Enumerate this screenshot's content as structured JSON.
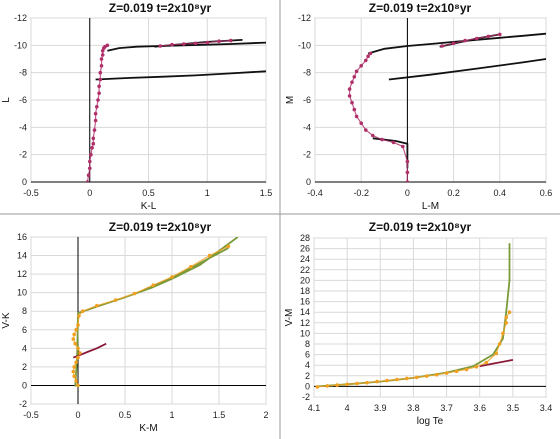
{
  "chart_data": [
    {
      "type": "line",
      "title": "Z=0.019   t=2x10⁸yr",
      "xlabel": "K-L",
      "ylabel": "L",
      "xlim": [
        -0.5,
        1.5
      ],
      "ylim": [
        0,
        -12
      ],
      "xticks": [
        "-0.5",
        "0",
        "0.5",
        "1",
        "1.5"
      ],
      "yticks": [
        "0",
        "-2",
        "-4",
        "-6",
        "-8",
        "-10",
        "-12"
      ],
      "grid": true,
      "series": [
        {
          "color": "#111111",
          "style": "line",
          "x": [
            0.15,
            0.25,
            0.4,
            0.6,
            0.8,
            1.0,
            1.2,
            1.5
          ],
          "y": [
            -9.6,
            -9.8,
            -9.9,
            -9.95,
            -10.0,
            -10.05,
            -10.1,
            -10.2
          ]
        },
        {
          "color": "#111111",
          "style": "line",
          "x": [
            0.05,
            0.3,
            0.6,
            0.9,
            1.2,
            1.5
          ],
          "y": [
            -7.5,
            -7.6,
            -7.7,
            -7.8,
            -7.95,
            -8.1
          ]
        },
        {
          "color": "#111111",
          "style": "line",
          "x": [
            0.55,
            0.8,
            1.0,
            1.3
          ],
          "y": [
            -9.9,
            -10.1,
            -10.25,
            -10.4
          ]
        },
        {
          "color": "#b0306a",
          "style": "markers",
          "x": [
            -0.02,
            -0.01,
            0.0,
            0.0,
            0.01,
            0.02,
            0.03,
            0.03,
            0.04,
            0.05,
            0.05,
            0.06,
            0.07,
            0.08,
            0.08,
            0.09,
            0.09,
            0.1,
            0.1,
            0.11,
            0.11,
            0.12,
            0.13,
            0.15
          ],
          "y": [
            0,
            -0.5,
            -1,
            -1.5,
            -2,
            -2.5,
            -2.8,
            -3.2,
            -3.8,
            -4.5,
            -5,
            -5.5,
            -6,
            -6.5,
            -7,
            -7.5,
            -8,
            -8.5,
            -9,
            -9.3,
            -9.6,
            -9.8,
            -9.9,
            -10.0
          ]
        },
        {
          "color": "#b0306a",
          "style": "markers",
          "x": [
            0.6,
            0.7,
            0.8,
            0.9,
            1.0,
            1.1,
            1.2
          ],
          "y": [
            -9.95,
            -10.05,
            -10.1,
            -10.15,
            -10.2,
            -10.3,
            -10.35
          ]
        }
      ]
    },
    {
      "type": "line",
      "title": "Z=0.019   t=2x10⁸yr",
      "xlabel": "L-M",
      "ylabel": "M",
      "xlim": [
        -0.4,
        0.6
      ],
      "ylim": [
        0,
        -12
      ],
      "xticks": [
        "-0.4",
        "-0.2",
        "0",
        "0.2",
        "0.4",
        "0.6"
      ],
      "yticks": [
        "0",
        "-2",
        "-4",
        "-6",
        "-8",
        "-10",
        "-12"
      ],
      "grid": true,
      "series": [
        {
          "color": "#111111",
          "style": "line",
          "x": [
            -0.17,
            -0.1,
            0.0,
            0.1,
            0.2,
            0.3,
            0.4,
            0.5,
            0.6
          ],
          "y": [
            -9.4,
            -9.75,
            -9.95,
            -10.1,
            -10.25,
            -10.4,
            -10.55,
            -10.7,
            -10.85
          ]
        },
        {
          "color": "#111111",
          "style": "line",
          "x": [
            -0.08,
            0.1,
            0.3,
            0.5,
            0.6
          ],
          "y": [
            -7.5,
            -7.85,
            -8.3,
            -8.75,
            -9.0
          ]
        },
        {
          "color": "#111111",
          "style": "line",
          "x": [
            0.14,
            0.22,
            0.3,
            0.4
          ],
          "y": [
            -9.9,
            -10.2,
            -10.5,
            -10.8
          ]
        },
        {
          "color": "#111111",
          "style": "line",
          "x": [
            -0.15,
            -0.1,
            -0.05,
            0.0,
            0.0,
            0.0
          ],
          "y": [
            -3.2,
            -3.1,
            -3.0,
            -2.8,
            -2.0,
            -1.0
          ]
        },
        {
          "color": "#b0306a",
          "style": "markers",
          "x": [
            0.0,
            0.0,
            0.0,
            -0.02,
            -0.06,
            -0.11,
            -0.15,
            -0.18,
            -0.2,
            -0.22,
            -0.23,
            -0.24,
            -0.25,
            -0.25,
            -0.24,
            -0.23,
            -0.22,
            -0.2,
            -0.18,
            -0.17,
            -0.16
          ],
          "y": [
            0,
            -0.7,
            -1.5,
            -2.6,
            -2.9,
            -3.1,
            -3.4,
            -3.8,
            -4.3,
            -4.8,
            -5.3,
            -5.8,
            -6.3,
            -6.8,
            -7.3,
            -7.7,
            -8.1,
            -8.5,
            -8.9,
            -9.2,
            -9.4
          ]
        },
        {
          "color": "#b0306a",
          "style": "markers",
          "x": [
            0.15,
            0.2,
            0.25,
            0.3,
            0.35,
            0.4
          ],
          "y": [
            -9.95,
            -10.15,
            -10.35,
            -10.5,
            -10.65,
            -10.8
          ]
        }
      ]
    },
    {
      "type": "line",
      "title": "Z=0.019   t=2x10⁸yr",
      "xlabel": "K-M",
      "ylabel": "V-K",
      "xlim": [
        -0.5,
        2
      ],
      "ylim": [
        -2,
        16
      ],
      "xticks": [
        "-0.5",
        "0",
        "0.5",
        "1",
        "1.5",
        "2"
      ],
      "yticks": [
        "-2",
        "0",
        "2",
        "4",
        "6",
        "8",
        "10",
        "12",
        "14",
        "16"
      ],
      "grid": true,
      "series": [
        {
          "color": "#7a9a3a",
          "style": "line",
          "x": [
            -0.03,
            -0.01,
            0.0,
            0.2,
            0.5,
            0.8,
            1.0,
            1.3,
            1.5,
            1.7
          ],
          "y": [
            -0.1,
            3.0,
            7.8,
            8.5,
            9.5,
            10.6,
            11.5,
            13.0,
            14.5,
            16.0
          ]
        },
        {
          "color": "#7a9a3a",
          "style": "line",
          "x": [
            0.7,
            1.0,
            1.3,
            1.6
          ],
          "y": [
            10.3,
            11.6,
            13.2,
            14.8
          ]
        },
        {
          "color": "#8b1a3a",
          "style": "line",
          "x": [
            -0.05,
            0.0,
            0.1,
            0.2,
            0.3
          ],
          "y": [
            3.0,
            3.2,
            3.6,
            4.0,
            4.5
          ]
        },
        {
          "color": "#f0a020",
          "style": "markers",
          "x": [
            0.0,
            -0.02,
            -0.04,
            -0.05,
            -0.04,
            -0.02,
            0.0,
            0.02,
            0.0,
            -0.03,
            -0.05,
            -0.04,
            -0.02,
            0.0,
            0.01,
            0.05,
            0.2,
            0.4,
            0.6,
            0.8,
            1.0,
            1.2,
            1.4,
            1.6
          ],
          "y": [
            0,
            0.5,
            1.0,
            1.5,
            2.0,
            2.5,
            3.0,
            3.5,
            4.0,
            4.5,
            5.0,
            5.5,
            6.0,
            6.5,
            7.5,
            8.0,
            8.6,
            9.2,
            9.9,
            10.8,
            11.7,
            12.8,
            14.0,
            15.0
          ]
        }
      ]
    },
    {
      "type": "line",
      "title": "Z=0.019   t=2x10⁸yr",
      "xlabel": "log Te",
      "ylabel": "V-M",
      "xlim": [
        4.1,
        3.4
      ],
      "ylim": [
        -2,
        28
      ],
      "xticks": [
        "4.1",
        "4",
        "3.9",
        "3.8",
        "3.7",
        "3.6",
        "3.5",
        "3.4"
      ],
      "yticks": [
        "-2",
        "0",
        "2",
        "4",
        "6",
        "8",
        "10",
        "12",
        "14",
        "16",
        "18",
        "20",
        "22",
        "24",
        "26",
        "28"
      ],
      "grid": true,
      "series": [
        {
          "color": "#7a9a3a",
          "style": "line",
          "x": [
            4.09,
            4.0,
            3.9,
            3.8,
            3.7,
            3.62,
            3.56,
            3.53,
            3.52,
            3.51,
            3.51,
            3.51
          ],
          "y": [
            0.0,
            0.4,
            0.9,
            1.6,
            2.6,
            3.8,
            6.0,
            9.0,
            14.0,
            20.0,
            24.0,
            27.0
          ]
        },
        {
          "color": "#8b1a3a",
          "style": "line",
          "x": [
            3.6,
            3.56,
            3.5
          ],
          "y": [
            3.8,
            4.3,
            5.0
          ]
        },
        {
          "color": "#f0a020",
          "style": "markers",
          "x": [
            4.09,
            4.06,
            4.03,
            4.0,
            3.97,
            3.94,
            3.91,
            3.88,
            3.85,
            3.82,
            3.79,
            3.76,
            3.73,
            3.7,
            3.67,
            3.64,
            3.61,
            3.58,
            3.55,
            3.54,
            3.53,
            3.52,
            3.52,
            3.51
          ],
          "y": [
            -0.1,
            0.1,
            0.25,
            0.4,
            0.55,
            0.7,
            0.9,
            1.1,
            1.3,
            1.5,
            1.7,
            1.95,
            2.2,
            2.5,
            2.85,
            3.2,
            3.7,
            4.5,
            6.2,
            8.0,
            10.0,
            12.0,
            13.0,
            14.0
          ]
        }
      ]
    }
  ]
}
